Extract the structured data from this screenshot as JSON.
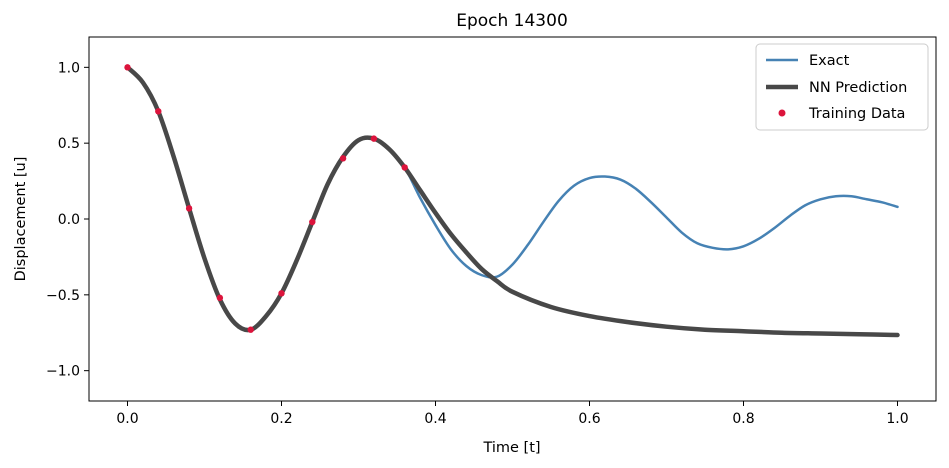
{
  "chart_data": {
    "type": "line",
    "title": "Epoch 14300",
    "xlabel": "Time [t]",
    "ylabel": "Displacement [u]",
    "xlim": [
      -0.05,
      1.05
    ],
    "ylim": [
      -1.2,
      1.2
    ],
    "xticks": [
      0.0,
      0.2,
      0.4,
      0.6,
      0.8,
      1.0
    ],
    "xtick_labels": [
      "0.0",
      "0.2",
      "0.4",
      "0.6",
      "0.8",
      "1.0"
    ],
    "yticks": [
      1.0,
      0.5,
      0.0,
      -0.5,
      -1.0
    ],
    "ytick_labels": [
      "1.0",
      "0.5",
      "0.0",
      "−0.5",
      "−1.0"
    ],
    "grid": false,
    "legend_position": "top-right",
    "series": [
      {
        "name": "Exact",
        "kind": "line",
        "color": "#4682b4",
        "x": [
          0.0,
          0.02,
          0.04,
          0.06,
          0.08,
          0.1,
          0.12,
          0.14,
          0.16,
          0.18,
          0.2,
          0.22,
          0.24,
          0.26,
          0.28,
          0.3,
          0.32,
          0.34,
          0.36,
          0.38,
          0.4,
          0.42,
          0.44,
          0.46,
          0.48,
          0.5,
          0.52,
          0.54,
          0.56,
          0.58,
          0.6,
          0.62,
          0.64,
          0.66,
          0.68,
          0.7,
          0.72,
          0.74,
          0.76,
          0.78,
          0.8,
          0.82,
          0.84,
          0.86,
          0.88,
          0.9,
          0.92,
          0.94,
          0.96,
          0.98,
          1.0
        ],
        "y": [
          1.0,
          0.9,
          0.71,
          0.41,
          0.07,
          -0.26,
          -0.53,
          -0.69,
          -0.73,
          -0.64,
          -0.49,
          -0.27,
          -0.02,
          0.23,
          0.41,
          0.52,
          0.53,
          0.46,
          0.34,
          0.14,
          -0.04,
          -0.2,
          -0.31,
          -0.37,
          -0.38,
          -0.3,
          -0.17,
          -0.02,
          0.12,
          0.22,
          0.27,
          0.28,
          0.26,
          0.2,
          0.11,
          0.01,
          -0.09,
          -0.16,
          -0.19,
          -0.2,
          -0.18,
          -0.13,
          -0.06,
          0.02,
          0.09,
          0.13,
          0.15,
          0.15,
          0.13,
          0.11,
          0.08
        ]
      },
      {
        "name": "NN Prediction",
        "kind": "line",
        "color": "#484848",
        "x": [
          0.0,
          0.02,
          0.04,
          0.06,
          0.08,
          0.1,
          0.12,
          0.14,
          0.16,
          0.18,
          0.2,
          0.22,
          0.24,
          0.26,
          0.28,
          0.3,
          0.32,
          0.34,
          0.36,
          0.38,
          0.4,
          0.42,
          0.44,
          0.46,
          0.48,
          0.5,
          0.55,
          0.6,
          0.65,
          0.7,
          0.75,
          0.8,
          0.85,
          0.9,
          0.95,
          1.0
        ],
        "y": [
          1.0,
          0.9,
          0.71,
          0.41,
          0.07,
          -0.26,
          -0.53,
          -0.69,
          -0.73,
          -0.64,
          -0.49,
          -0.27,
          -0.02,
          0.23,
          0.41,
          0.52,
          0.53,
          0.46,
          0.34,
          0.19,
          0.04,
          -0.1,
          -0.22,
          -0.33,
          -0.41,
          -0.48,
          -0.58,
          -0.64,
          -0.68,
          -0.71,
          -0.73,
          -0.74,
          -0.75,
          -0.755,
          -0.76,
          -0.765
        ]
      },
      {
        "name": "Training Data",
        "kind": "scatter",
        "color": "#dc143c",
        "x": [
          0.0,
          0.04,
          0.08,
          0.12,
          0.16,
          0.2,
          0.24,
          0.28,
          0.32,
          0.36
        ],
        "y": [
          1.0,
          0.71,
          0.07,
          -0.52,
          -0.73,
          -0.49,
          -0.02,
          0.4,
          0.53,
          0.34
        ]
      }
    ]
  }
}
